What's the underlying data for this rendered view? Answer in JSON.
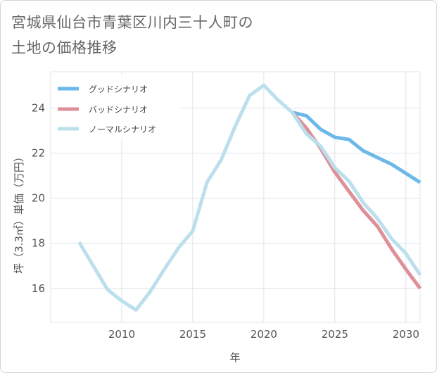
{
  "title_lines": [
    "宮城県仙台市青葉区川内三十人町の",
    "土地の価格推移"
  ],
  "chart_data": {
    "type": "line",
    "xlabel": "年",
    "ylabel": "坪（3.3㎡）単価（万円）",
    "xlim": [
      2005,
      2031
    ],
    "ylim": [
      14.5,
      25.6
    ],
    "xticks": [
      2010,
      2015,
      2020,
      2025,
      2030
    ],
    "yticks": [
      16,
      18,
      20,
      22,
      24
    ],
    "grid": true,
    "legend_position": "top-left",
    "series": [
      {
        "name": "グッドシナリオ",
        "color": "#6cb8ea",
        "x": [
          2022,
          2023,
          2024,
          2025,
          2026,
          2027,
          2028,
          2029,
          2030,
          2031
        ],
        "y": [
          23.8,
          23.65,
          23.05,
          22.7,
          22.6,
          22.1,
          21.8,
          21.5,
          21.1,
          20.7
        ]
      },
      {
        "name": "バッドシナリオ",
        "color": "#de8f98",
        "x": [
          2022,
          2023,
          2024,
          2025,
          2026,
          2027,
          2028,
          2029,
          2030,
          2031
        ],
        "y": [
          23.8,
          23.1,
          22.2,
          21.15,
          20.3,
          19.45,
          18.75,
          17.75,
          16.85,
          16.0
        ]
      },
      {
        "name": "ノーマルシナリオ",
        "color": "#bcdfec",
        "x": [
          2007,
          2008,
          2009,
          2010,
          2011,
          2012,
          2013,
          2014,
          2015,
          2016,
          2017,
          2018,
          2019,
          2020,
          2021,
          2022,
          2023,
          2024,
          2025,
          2026,
          2027,
          2028,
          2029,
          2030,
          2031
        ],
        "y": [
          18.05,
          17.0,
          15.95,
          15.45,
          15.05,
          15.85,
          16.85,
          17.8,
          18.55,
          20.7,
          21.7,
          23.2,
          24.55,
          25.0,
          24.35,
          23.8,
          22.85,
          22.3,
          21.35,
          20.75,
          19.8,
          19.1,
          18.2,
          17.55,
          16.6
        ]
      }
    ]
  }
}
